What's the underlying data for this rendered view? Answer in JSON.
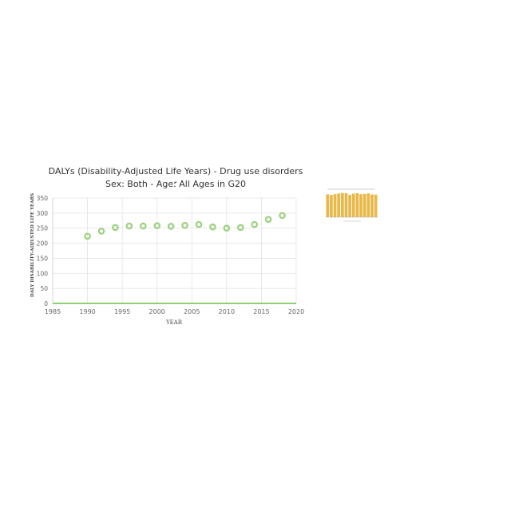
{
  "chart_data": {
    "type": "scatter",
    "title_line1": "DALYs (Disability-Adjusted Life Years) - Drug use disorders -",
    "title_line2": "Sex: Both - Age: All Ages in G20",
    "xlabel": "YEAR",
    "ylabel": "DALY DISABILITY-ADJUSTED LIFE YEARS",
    "xlim": [
      1985,
      2020
    ],
    "ylim": [
      0,
      350
    ],
    "xticks": [
      "1985",
      "1990",
      "1995",
      "2000",
      "2005",
      "2010",
      "2015",
      "2020"
    ],
    "yticks": [
      "0",
      "50",
      "100",
      "150",
      "200",
      "250",
      "300",
      "350"
    ],
    "grid": true,
    "marker_color": "#9bd17f",
    "axis_color": "#6abf4b",
    "points": [
      {
        "x": 1990,
        "y": 223
      },
      {
        "x": 1992,
        "y": 240
      },
      {
        "x": 1994,
        "y": 252
      },
      {
        "x": 1996,
        "y": 257
      },
      {
        "x": 1998,
        "y": 257
      },
      {
        "x": 2000,
        "y": 258
      },
      {
        "x": 2002,
        "y": 256
      },
      {
        "x": 2004,
        "y": 259
      },
      {
        "x": 2006,
        "y": 262
      },
      {
        "x": 2008,
        "y": 254
      },
      {
        "x": 2010,
        "y": 250
      },
      {
        "x": 2012,
        "y": 252
      },
      {
        "x": 2014,
        "y": 262
      },
      {
        "x": 2016,
        "y": 279
      },
      {
        "x": 2018,
        "y": 292
      }
    ]
  },
  "thumbnail": {
    "bar_color": "#e8b84a",
    "values": [
      92,
      90,
      93,
      96,
      98,
      97,
      90,
      95,
      97,
      93,
      94,
      96,
      92,
      91
    ]
  }
}
